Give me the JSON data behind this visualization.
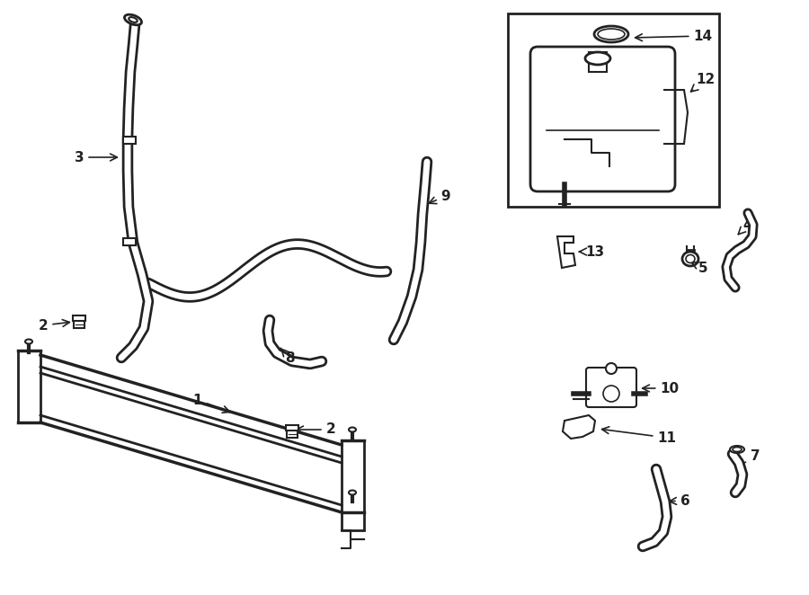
{
  "background_color": "#ffffff",
  "line_color": "#222222",
  "fig_width": 9.0,
  "fig_height": 6.62,
  "label_fontsize": 11
}
